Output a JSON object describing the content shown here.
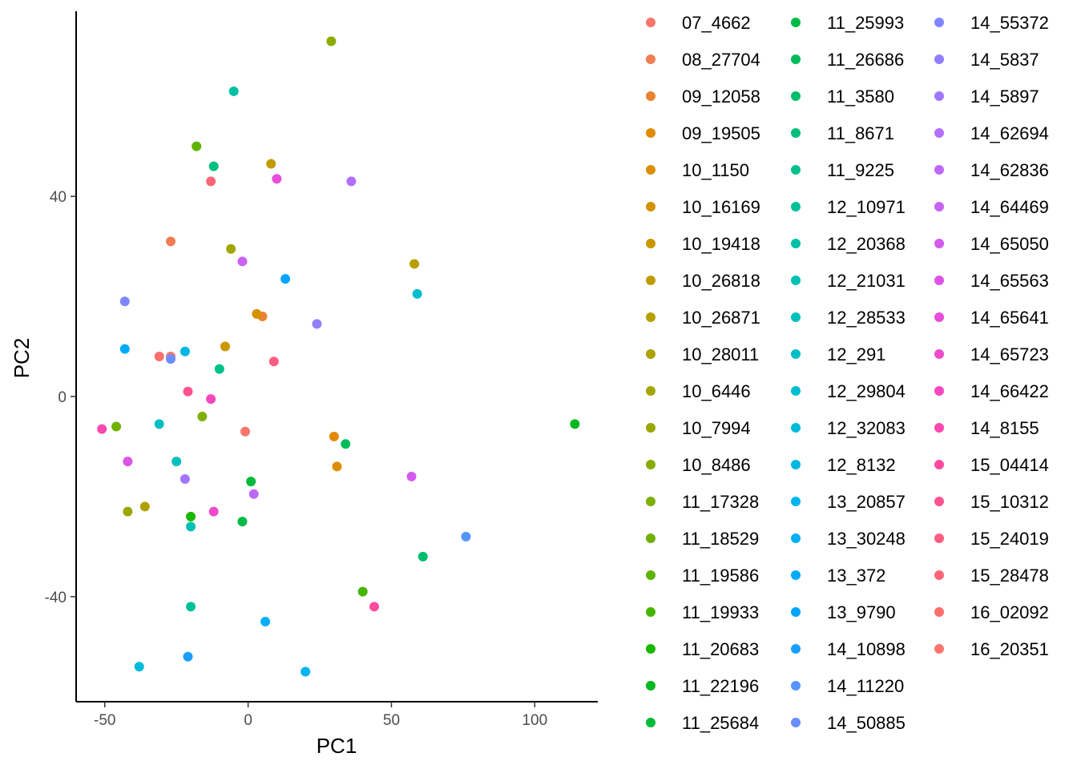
{
  "chart_data": {
    "type": "scatter",
    "title": "",
    "xlabel": "PC1",
    "ylabel": "PC2",
    "xlim": [
      -60,
      122
    ],
    "ylim": [
      -61,
      77
    ],
    "x_ticks": [
      -50,
      0,
      50,
      100
    ],
    "y_ticks": [
      -40,
      0,
      40
    ],
    "x_tick_labels": [
      "-50",
      "0",
      "50",
      "100"
    ],
    "y_tick_labels": [
      "-40",
      "0",
      "40"
    ],
    "grid": false,
    "legend_position": "right",
    "series": [
      {
        "name": "07_4662",
        "color": "#F8766D",
        "x": -27,
        "y": 8
      },
      {
        "name": "08_27704",
        "color": "#F27D52",
        "x": -27,
        "y": 31
      },
      {
        "name": "09_12058",
        "color": "#EA8331",
        "x": 5,
        "y": 16
      },
      {
        "name": "09_19505",
        "color": "#E38900",
        "x": 30,
        "y": -8
      },
      {
        "name": "10_1150",
        "color": "#DB8E00",
        "x": 31,
        "y": -14
      },
      {
        "name": "10_16169",
        "color": "#D39200",
        "x": 3,
        "y": 16.5
      },
      {
        "name": "10_19418",
        "color": "#CB9600",
        "x": -8,
        "y": 10
      },
      {
        "name": "10_26818",
        "color": "#C09B00",
        "x": 8,
        "y": 46.5
      },
      {
        "name": "10_26871",
        "color": "#B79F00",
        "x": 58,
        "y": 26.5
      },
      {
        "name": "10_28011",
        "color": "#AEA200",
        "x": -36,
        "y": -22
      },
      {
        "name": "10_6446",
        "color": "#A3A500",
        "x": -6,
        "y": 29.5
      },
      {
        "name": "10_7994",
        "color": "#98A800",
        "x": -42,
        "y": -23
      },
      {
        "name": "10_8486",
        "color": "#8BAB00",
        "x": 29,
        "y": 71
      },
      {
        "name": "11_17328",
        "color": "#7EAE00",
        "x": -16,
        "y": -4
      },
      {
        "name": "11_18529",
        "color": "#70B000",
        "x": -46,
        "y": -6
      },
      {
        "name": "11_19586",
        "color": "#5EB300",
        "x": -18,
        "y": 50
      },
      {
        "name": "11_19933",
        "color": "#45B500",
        "x": 40,
        "y": -39
      },
      {
        "name": "11_20683",
        "color": "#1AB700",
        "x": -20,
        "y": -24
      },
      {
        "name": "11_22196",
        "color": "#00B81F",
        "x": 114,
        "y": -5.5
      },
      {
        "name": "11_25684",
        "color": "#00BA38",
        "x": 1,
        "y": -17
      },
      {
        "name": "11_25993",
        "color": "#00BB48",
        "x": -2,
        "y": -25
      },
      {
        "name": "11_26686",
        "color": "#00BC59",
        "x": 34,
        "y": -9.5
      },
      {
        "name": "11_3580",
        "color": "#00BD6B",
        "x": 61,
        "y": -32
      },
      {
        "name": "11_8671",
        "color": "#00BF7D",
        "x": -12,
        "y": 46
      },
      {
        "name": "11_9225",
        "color": "#00C08B",
        "x": -10,
        "y": 5.5
      },
      {
        "name": "12_10971",
        "color": "#00C098",
        "x": -20,
        "y": -42
      },
      {
        "name": "12_20368",
        "color": "#00C1A5",
        "x": -5,
        "y": 61
      },
      {
        "name": "12_21031",
        "color": "#00C1B2",
        "x": -20,
        "y": -26
      },
      {
        "name": "12_28533",
        "color": "#00C0BD",
        "x": -25,
        "y": -13
      },
      {
        "name": "12_291",
        "color": "#00BFC4",
        "x": -31,
        "y": -5.5
      },
      {
        "name": "12_29804",
        "color": "#00BDD0",
        "x": 59,
        "y": 20.5
      },
      {
        "name": "12_32083",
        "color": "#00BBDA",
        "x": -38,
        "y": -54
      },
      {
        "name": "12_8132",
        "color": "#00B8E3",
        "x": -22,
        "y": 9
      },
      {
        "name": "13_20857",
        "color": "#00B4EF",
        "x": 20,
        "y": -55
      },
      {
        "name": "13_30248",
        "color": "#00B0F6",
        "x": 6,
        "y": -45
      },
      {
        "name": "13_372",
        "color": "#00ABFD",
        "x": -43,
        "y": 9.5
      },
      {
        "name": "13_9790",
        "color": "#00A5FF",
        "x": 13,
        "y": 23.5
      },
      {
        "name": "14_10898",
        "color": "#199DFF",
        "x": -21,
        "y": -52
      },
      {
        "name": "14_11220",
        "color": "#5694FF",
        "x": 76,
        "y": -28
      },
      {
        "name": "14_50885",
        "color": "#6B8DFF",
        "x": -27,
        "y": 7.5
      },
      {
        "name": "14_55372",
        "color": "#7F86FF",
        "x": -43,
        "y": 19
      },
      {
        "name": "14_5837",
        "color": "#937DFF",
        "x": 24,
        "y": 14.5
      },
      {
        "name": "14_5897",
        "color": "#A176FF",
        "x": -22,
        "y": -16.5
      },
      {
        "name": "14_62694",
        "color": "#B26FFF",
        "x": 36,
        "y": 43
      },
      {
        "name": "14_62836",
        "color": "#BD68F9",
        "x": 2,
        "y": -19.5
      },
      {
        "name": "14_64469",
        "color": "#C963F3",
        "x": -2,
        "y": 27
      },
      {
        "name": "14_65050",
        "color": "#D459EE",
        "x": 57,
        "y": -16
      },
      {
        "name": "14_65563",
        "color": "#DD54E4",
        "x": -42,
        "y": -13
      },
      {
        "name": "14_65641",
        "color": "#E84ED9",
        "x": 10,
        "y": 43.5
      },
      {
        "name": "14_65723",
        "color": "#EE4BCD",
        "x": -12,
        "y": -23
      },
      {
        "name": "14_66422",
        "color": "#F747BE",
        "x": -13,
        "y": -0.5
      },
      {
        "name": "14_8155",
        "color": "#FB48B0",
        "x": -51,
        "y": -6.5
      },
      {
        "name": "15_04414",
        "color": "#FF4AA0",
        "x": 44,
        "y": -42
      },
      {
        "name": "15_10312",
        "color": "#FF5391",
        "x": -21,
        "y": 1
      },
      {
        "name": "15_24019",
        "color": "#FE5C81",
        "x": 9,
        "y": 7
      },
      {
        "name": "15_28478",
        "color": "#FC6676",
        "x": -13,
        "y": 43
      },
      {
        "name": "16_02092",
        "color": "#FA6E6C",
        "x": -31,
        "y": 8
      },
      {
        "name": "16_20351",
        "color": "#F8766D",
        "x": -1,
        "y": -7
      }
    ]
  }
}
